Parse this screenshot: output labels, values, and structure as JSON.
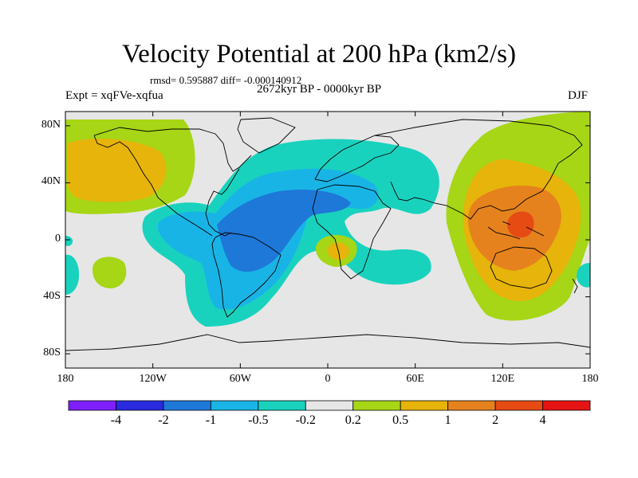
{
  "title": "Velocity Potential at 200 hPa (km2/s)",
  "stats_line": "rmsd= 0.595887 diff= -0.000140912",
  "experiment": "Expt = xqFVe-xqfua",
  "period": "2672kyr BP - 0000kyr BP",
  "season": "DJF",
  "map": {
    "projection": "cylindrical equidistant",
    "lon_range": [
      -180,
      180
    ],
    "lat_range": [
      -90,
      90
    ],
    "y_ticks": [
      {
        "label": "80N",
        "lat": 80
      },
      {
        "label": "40N",
        "lat": 40
      },
      {
        "label": "0",
        "lat": 0
      },
      {
        "label": "40S",
        "lat": -40
      },
      {
        "label": "80S",
        "lat": -80
      }
    ],
    "x_ticks": [
      {
        "label": "180",
        "lon": -180
      },
      {
        "label": "120W",
        "lon": -120
      },
      {
        "label": "60W",
        "lon": -60
      },
      {
        "label": "0",
        "lon": 0
      },
      {
        "label": "60E",
        "lon": 60
      },
      {
        "label": "120E",
        "lon": 120
      },
      {
        "label": "180",
        "lon": 180
      }
    ]
  },
  "colorbar": {
    "boundaries": [
      "-4",
      "-2",
      "-1",
      "-0.5",
      "-0.2",
      "0.2",
      "0.5",
      "1",
      "2",
      "4"
    ],
    "colors": [
      "#7f1fff",
      "#2a2ae0",
      "#1e78d8",
      "#19b4e6",
      "#19d2be",
      "#e6e6e6",
      "#a6d616",
      "#e6b40a",
      "#e6821e",
      "#e64b14",
      "#e61414"
    ]
  },
  "colors": {
    "background": "#e6e6e6",
    "strong_negative": "#1e78d8",
    "negative": "#19b4e6",
    "weak_negative": "#19d2be",
    "weak_positive": "#a6d616",
    "positive": "#e6b40a",
    "strong_positive": "#e6821e",
    "max_positive": "#e64b14"
  }
}
